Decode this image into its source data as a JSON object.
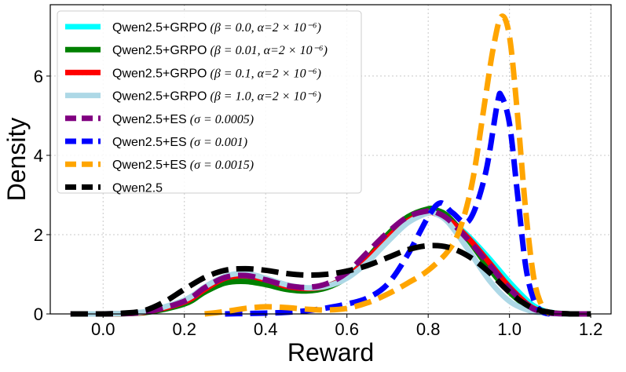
{
  "chart_data": {
    "type": "line",
    "xlabel": "Reward",
    "ylabel": "Density",
    "xlim": [
      -0.13,
      1.25
    ],
    "ylim": [
      0,
      7.8
    ],
    "xticks": [
      0.0,
      0.2,
      0.4,
      0.6,
      0.8,
      1.0,
      1.2
    ],
    "xtick_labels": [
      "0.0",
      "0.2",
      "0.4",
      "0.6",
      "0.8",
      "1.0",
      "1.2"
    ],
    "yticks": [
      0,
      2,
      4,
      6
    ],
    "ytick_labels": [
      "0",
      "2",
      "4",
      "6"
    ],
    "grid": true,
    "legend_position": "upper-left",
    "series": [
      {
        "name": "Qwen2.5+GRPO (β=0.0, α=2×10⁻⁶)",
        "legend_prefix": "Qwen2.5+GRPO",
        "legend_params": "(β = 0.0, α=2 × 10⁻⁶)",
        "color": "#00ffff",
        "style": "solid",
        "x": [
          -0.08,
          0.0,
          0.1,
          0.2,
          0.25,
          0.3,
          0.35,
          0.4,
          0.45,
          0.5,
          0.55,
          0.6,
          0.65,
          0.7,
          0.75,
          0.8,
          0.83,
          0.85,
          0.9,
          0.95,
          1.0,
          1.05,
          1.08,
          1.1,
          1.15,
          1.2
        ],
        "y": [
          0.0,
          0.0,
          0.04,
          0.3,
          0.6,
          0.85,
          0.92,
          0.82,
          0.68,
          0.62,
          0.7,
          0.95,
          1.4,
          1.95,
          2.4,
          2.6,
          2.55,
          2.4,
          1.95,
          1.4,
          0.8,
          0.28,
          0.1,
          0.04,
          0.0,
          0.0
        ]
      },
      {
        "name": "Qwen2.5+GRPO (β=0.01, α=2×10⁻⁶)",
        "legend_prefix": "Qwen2.5+GRPO",
        "legend_params": "(β = 0.01, α=2 × 10⁻⁶)",
        "color": "#008000",
        "style": "solid",
        "x": [
          -0.08,
          0.0,
          0.1,
          0.2,
          0.25,
          0.3,
          0.35,
          0.4,
          0.45,
          0.5,
          0.55,
          0.6,
          0.65,
          0.7,
          0.75,
          0.8,
          0.82,
          0.85,
          0.9,
          0.95,
          1.0,
          1.05,
          1.08,
          1.1,
          1.15,
          1.2
        ],
        "y": [
          0.0,
          0.0,
          0.03,
          0.25,
          0.55,
          0.78,
          0.82,
          0.74,
          0.62,
          0.58,
          0.66,
          0.92,
          1.4,
          2.0,
          2.45,
          2.65,
          2.62,
          2.45,
          1.85,
          1.15,
          0.55,
          0.15,
          0.05,
          0.02,
          0.0,
          0.0
        ]
      },
      {
        "name": "Qwen2.5+GRPO (β=0.1, α=2×10⁻⁶)",
        "legend_prefix": "Qwen2.5+GRPO",
        "legend_params": "(β = 0.1, α=2 × 10⁻⁶)",
        "color": "#ff0000",
        "style": "solid",
        "x": [
          -0.08,
          0.0,
          0.1,
          0.2,
          0.25,
          0.3,
          0.35,
          0.4,
          0.45,
          0.5,
          0.55,
          0.6,
          0.65,
          0.7,
          0.75,
          0.8,
          0.82,
          0.85,
          0.9,
          0.95,
          1.0,
          1.05,
          1.08,
          1.1,
          1.15,
          1.2
        ],
        "y": [
          0.0,
          0.0,
          0.04,
          0.3,
          0.62,
          0.9,
          0.96,
          0.86,
          0.7,
          0.64,
          0.7,
          0.94,
          1.38,
          1.92,
          2.35,
          2.55,
          2.52,
          2.38,
          1.9,
          1.3,
          0.68,
          0.2,
          0.07,
          0.03,
          0.0,
          0.0
        ]
      },
      {
        "name": "Qwen2.5+GRPO (β=1.0, α=2×10⁻⁶)",
        "legend_prefix": "Qwen2.5+GRPO",
        "legend_params": "(β = 1.0, α=2 × 10⁻⁶)",
        "color": "#add8e6",
        "style": "solid",
        "x": [
          -0.08,
          0.0,
          0.1,
          0.2,
          0.25,
          0.3,
          0.35,
          0.4,
          0.45,
          0.5,
          0.55,
          0.6,
          0.65,
          0.7,
          0.75,
          0.8,
          0.82,
          0.85,
          0.9,
          0.95,
          1.0,
          1.05,
          1.08,
          1.1,
          1.15,
          1.2
        ],
        "y": [
          0.0,
          0.0,
          0.05,
          0.35,
          0.68,
          0.95,
          1.02,
          0.9,
          0.74,
          0.66,
          0.7,
          0.9,
          1.3,
          1.82,
          2.3,
          2.55,
          2.52,
          2.3,
          1.6,
          0.85,
          0.32,
          0.08,
          0.03,
          0.01,
          0.0,
          0.0
        ]
      },
      {
        "name": "Qwen2.5+ES (σ=0.0005)",
        "legend_prefix": "Qwen2.5+ES",
        "legend_params": "(σ = 0.0005)",
        "color": "#800080",
        "style": "dashed",
        "x": [
          -0.08,
          0.0,
          0.1,
          0.2,
          0.25,
          0.3,
          0.35,
          0.4,
          0.45,
          0.5,
          0.55,
          0.6,
          0.65,
          0.7,
          0.75,
          0.8,
          0.82,
          0.85,
          0.9,
          0.95,
          1.0,
          1.05,
          1.08,
          1.1,
          1.15,
          1.2
        ],
        "y": [
          0.0,
          0.0,
          0.04,
          0.32,
          0.66,
          0.92,
          0.97,
          0.86,
          0.72,
          0.67,
          0.76,
          1.04,
          1.55,
          2.05,
          2.45,
          2.6,
          2.56,
          2.38,
          1.85,
          1.25,
          0.64,
          0.18,
          0.06,
          0.02,
          0.0,
          0.0
        ]
      },
      {
        "name": "Qwen2.5+ES (σ=0.001)",
        "legend_prefix": "Qwen2.5+ES",
        "legend_params": "(σ = 0.001)",
        "color": "#0000ff",
        "style": "dashed",
        "x": [
          0.3,
          0.35,
          0.4,
          0.45,
          0.5,
          0.55,
          0.6,
          0.65,
          0.7,
          0.75,
          0.8,
          0.83,
          0.86,
          0.9,
          0.94,
          0.97,
          0.98,
          1.0,
          1.02,
          1.04,
          1.06,
          1.08,
          1.1
        ],
        "y": [
          0.0,
          0.01,
          0.02,
          0.04,
          0.08,
          0.15,
          0.25,
          0.4,
          0.75,
          1.5,
          2.45,
          2.8,
          2.55,
          2.35,
          3.5,
          5.3,
          5.5,
          4.8,
          3.0,
          1.2,
          0.35,
          0.06,
          0.0
        ]
      },
      {
        "name": "Qwen2.5+ES (σ=0.0015)",
        "legend_prefix": "Qwen2.5+ES",
        "legend_params": "(σ = 0.0015)",
        "color": "#ffa500",
        "style": "dashed",
        "x": [
          0.25,
          0.3,
          0.35,
          0.4,
          0.45,
          0.5,
          0.55,
          0.6,
          0.65,
          0.7,
          0.75,
          0.8,
          0.85,
          0.88,
          0.91,
          0.94,
          0.96,
          0.98,
          1.0,
          1.02,
          1.04,
          1.06,
          1.08,
          1.1
        ],
        "y": [
          0.0,
          0.06,
          0.14,
          0.18,
          0.16,
          0.12,
          0.1,
          0.14,
          0.28,
          0.5,
          0.78,
          1.1,
          1.6,
          2.2,
          3.4,
          5.4,
          6.7,
          7.5,
          7.0,
          5.0,
          2.6,
          0.9,
          0.2,
          0.0
        ]
      },
      {
        "name": "Qwen2.5",
        "legend_prefix": "Qwen2.5",
        "legend_params": "",
        "color": "#000000",
        "style": "dashed",
        "x": [
          -0.08,
          0.0,
          0.05,
          0.1,
          0.15,
          0.2,
          0.25,
          0.3,
          0.35,
          0.4,
          0.45,
          0.5,
          0.55,
          0.6,
          0.65,
          0.7,
          0.75,
          0.8,
          0.85,
          0.9,
          0.95,
          1.0,
          1.05,
          1.1,
          1.15,
          1.2
        ],
        "y": [
          0.0,
          0.0,
          0.02,
          0.08,
          0.3,
          0.62,
          0.92,
          1.1,
          1.14,
          1.1,
          1.02,
          0.98,
          1.0,
          1.08,
          1.22,
          1.42,
          1.62,
          1.72,
          1.68,
          1.45,
          1.05,
          0.55,
          0.18,
          0.04,
          0.0,
          0.0
        ]
      }
    ]
  }
}
